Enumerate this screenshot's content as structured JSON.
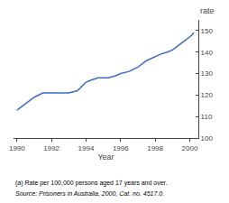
{
  "chart_data": {
    "type": "line",
    "x": [
      1990,
      1990.5,
      1991,
      1991.5,
      1992,
      1992.3,
      1992.7,
      1993,
      1993.5,
      1994,
      1994.3,
      1994.7,
      1995,
      1995.3,
      1995.7,
      1996,
      1996.5,
      1997,
      1997.5,
      1998,
      1998.3,
      1998.7,
      1999,
      1999.5,
      2000,
      2000.25
    ],
    "values": [
      113,
      116,
      119,
      121,
      121,
      121,
      121,
      121,
      122,
      126,
      127,
      128,
      128,
      128,
      129,
      130,
      131,
      133,
      136,
      138,
      139,
      140,
      141,
      144,
      147,
      149
    ],
    "color": "#3b6bcc",
    "xlabel": "Year",
    "ylabel": "rate",
    "xlim": [
      1989.8,
      2000.5
    ],
    "xticks": [
      1990,
      1992,
      1994,
      1996,
      1998,
      2000
    ],
    "ylim": [
      100,
      155
    ],
    "yticks": [
      100,
      110,
      120,
      130,
      140,
      150
    ],
    "grid": false,
    "footnotes": [
      "(a) Rate per 100,000 persons aged 17 years and over.",
      "Source: Prisoners in Australia, 2000, Cat. no. 4517.0."
    ]
  }
}
